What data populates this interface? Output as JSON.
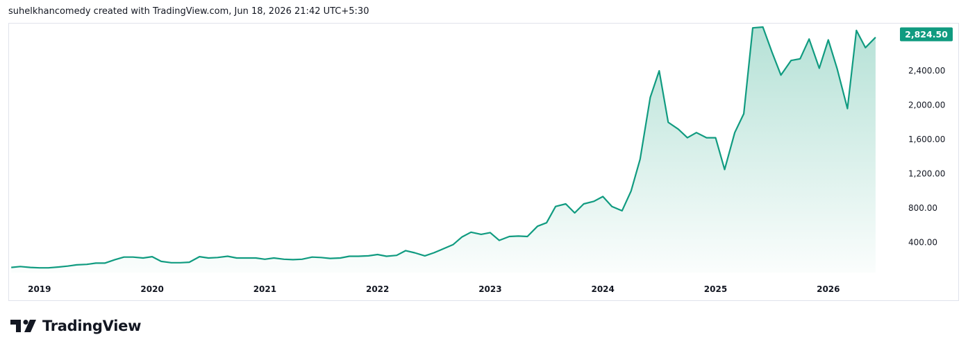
{
  "header": {
    "text": "suhelkhancomedy created with TradingView.com, Jun 18, 2026 21:42 UTC+5:30"
  },
  "logo": {
    "text": "TradingView"
  },
  "colors": {
    "line": "#109b80",
    "fill_top": "#a8dccf",
    "tag_bg": "#109b80",
    "grid_border": "#e0e3eb"
  },
  "price_tag": {
    "label": "2,824.50",
    "value": 2824.5
  },
  "chart_data": {
    "type": "area",
    "title": "",
    "xlabel": "",
    "ylabel": "",
    "y_ticks": [
      {
        "value": 400,
        "label": "400.00"
      },
      {
        "value": 800,
        "label": "800.00"
      },
      {
        "value": 1200,
        "label": "1,200.00"
      },
      {
        "value": 1600,
        "label": "1,600.00"
      },
      {
        "value": 2000,
        "label": "2,000.00"
      },
      {
        "value": 2400,
        "label": "2,400.00"
      }
    ],
    "x_ticks": [
      {
        "value": 2019.0,
        "label": "2019"
      },
      {
        "value": 2020.0,
        "label": "2020"
      },
      {
        "value": 2021.0,
        "label": "2021"
      },
      {
        "value": 2022.0,
        "label": "2022"
      },
      {
        "value": 2023.0,
        "label": "2023"
      },
      {
        "value": 2024.0,
        "label": "2024"
      },
      {
        "value": 2025.0,
        "label": "2025"
      },
      {
        "value": 2026.0,
        "label": "2026"
      }
    ],
    "xlim": [
      2018.73,
      2026.63
    ],
    "ylim": [
      50,
      2950
    ],
    "series": [
      {
        "x": [
          2018.75,
          2018.83,
          2018.92,
          2019.0,
          2019.08,
          2019.17,
          2019.25,
          2019.33,
          2019.42,
          2019.5,
          2019.58,
          2019.67,
          2019.75,
          2019.83,
          2019.92,
          2020.0,
          2020.08,
          2020.17,
          2020.25,
          2020.33,
          2020.42,
          2020.5,
          2020.58,
          2020.67,
          2020.75,
          2020.83,
          2020.92,
          2021.0,
          2021.08,
          2021.17,
          2021.25,
          2021.33,
          2021.42,
          2021.5,
          2021.58,
          2021.67,
          2021.75,
          2021.83,
          2021.92,
          2022.0,
          2022.08,
          2022.17,
          2022.25,
          2022.33,
          2022.42,
          2022.5,
          2022.58,
          2022.67,
          2022.75,
          2022.83,
          2022.92,
          2023.0,
          2023.08,
          2023.17,
          2023.25,
          2023.33,
          2023.42,
          2023.5,
          2023.58,
          2023.67,
          2023.75,
          2023.83,
          2023.92,
          2024.0,
          2024.08,
          2024.17,
          2024.25,
          2024.33,
          2024.42,
          2024.5,
          2024.58,
          2024.67,
          2024.75,
          2024.83,
          2024.92,
          2025.0,
          2025.08,
          2025.17,
          2025.25,
          2025.33,
          2025.42,
          2025.5,
          2025.58,
          2025.67,
          2025.75,
          2025.83,
          2025.92,
          2026.0,
          2026.08,
          2026.17,
          2026.25,
          2026.33,
          2026.42
        ],
        "y": [
          110,
          120,
          110,
          105,
          105,
          115,
          125,
          140,
          145,
          160,
          160,
          200,
          230,
          230,
          220,
          235,
          180,
          165,
          165,
          170,
          235,
          220,
          225,
          240,
          220,
          220,
          220,
          205,
          220,
          205,
          200,
          205,
          230,
          225,
          215,
          220,
          240,
          240,
          245,
          260,
          240,
          250,
          305,
          280,
          245,
          280,
          325,
          375,
          465,
          520,
          495,
          515,
          425,
          470,
          475,
          470,
          590,
          630,
          820,
          850,
          745,
          850,
          880,
          935,
          820,
          770,
          1000,
          1370,
          2090,
          2400,
          1800,
          1720,
          1620,
          1680,
          1620,
          1620,
          1250,
          1680,
          1900,
          2900,
          2910,
          2620,
          2350,
          2520,
          2540,
          2770,
          2430,
          2760,
          2420,
          1960,
          2870,
          2670,
          2790
        ]
      }
    ]
  }
}
